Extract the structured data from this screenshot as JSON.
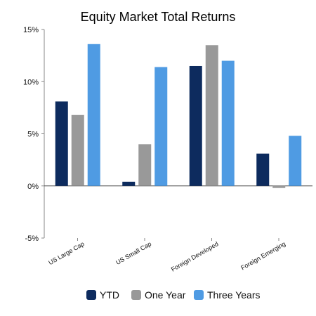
{
  "chart_data": {
    "type": "bar",
    "title": "Equity Market Total Returns",
    "xlabel": "",
    "ylabel": "",
    "categories": [
      "US Large Cap",
      "US Small Cap",
      "Foreign Developed",
      "Foreign Emerging"
    ],
    "series": [
      {
        "name": "YTD",
        "color": "#0d2b5e",
        "values": [
          8.1,
          0.4,
          11.5,
          3.1
        ]
      },
      {
        "name": "One Year",
        "color": "#999999",
        "values": [
          6.8,
          4.0,
          13.5,
          -0.2
        ]
      },
      {
        "name": "Three Years",
        "color": "#4f9be3",
        "values": [
          13.6,
          11.4,
          12.0,
          4.8
        ]
      }
    ],
    "ylim": [
      -5,
      15
    ],
    "yticks": [
      "15%",
      "10%",
      "5%",
      "0%",
      "-5%"
    ],
    "grid": false,
    "legend_position": "bottom"
  }
}
